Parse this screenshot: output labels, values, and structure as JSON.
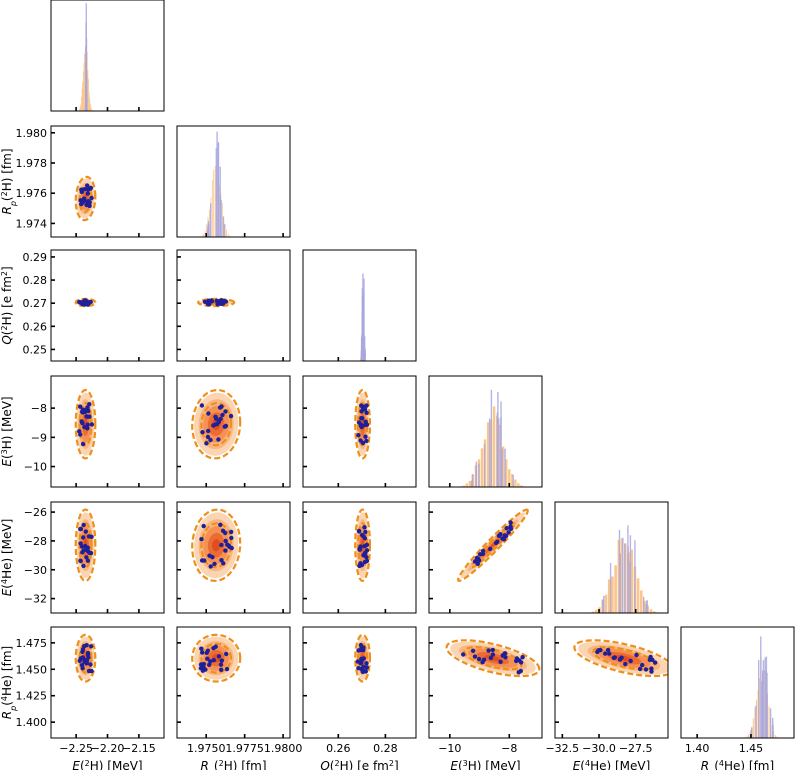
{
  "chart_data": {
    "type": "corner",
    "title": "",
    "parameters": [
      {
        "key": "E2H",
        "label": [
          "E(",
          "2",
          "H) [MeV]"
        ],
        "range": [
          -2.29,
          -2.11
        ],
        "ticks": [
          -2.25,
          -2.2,
          -2.15
        ],
        "tick_labels": [
          "−2.25",
          "−2.20",
          "−2.15"
        ],
        "center": -2.235
      },
      {
        "key": "Rp2H",
        "label": [
          "R",
          "p",
          "(",
          "2",
          "H) [fm]"
        ],
        "range": [
          1.9731,
          1.98045
        ],
        "ticks": [
          1.974,
          1.976,
          1.978,
          1.98
        ],
        "tick_labels": [
          "1.974",
          "1.976",
          "1.978",
          "1.980"
        ],
        "xticks": [
          1.975,
          1.9775,
          1.98
        ],
        "xtick_labels": [
          "1.9750",
          "1.9775",
          "1.9800"
        ],
        "center": 1.97565
      },
      {
        "key": "Q2H",
        "label": [
          "Q(",
          "2",
          "H) [e fm",
          "2",
          "]"
        ],
        "range": [
          0.245,
          0.293
        ],
        "ticks": [
          0.25,
          0.26,
          0.27,
          0.28,
          0.29
        ],
        "tick_labels": [
          "0.25",
          "0.26",
          "0.27",
          "0.28",
          "0.29"
        ],
        "xticks": [
          0.26,
          0.28
        ],
        "xtick_labels": [
          "0.26",
          "0.28"
        ],
        "center": 0.2703
      },
      {
        "key": "E3H",
        "label": [
          "E(",
          "3",
          "H) [MeV]"
        ],
        "range": [
          -10.7,
          -6.9
        ],
        "ticks": [
          -10,
          -9,
          -8
        ],
        "tick_labels": [
          "−10",
          "−9",
          "−8"
        ],
        "xticks": [
          -10,
          -8
        ],
        "xtick_labels": [
          "−10",
          "−8"
        ],
        "center": -8.55
      },
      {
        "key": "E4He",
        "label": [
          "E(",
          "4",
          "He) [MeV]"
        ],
        "range": [
          -33,
          -25.3
        ],
        "ticks": [
          -32,
          -30,
          -28,
          -26
        ],
        "tick_labels": [
          "−32",
          "−30",
          "−28",
          "−26"
        ],
        "xticks": [
          -32.5,
          -30.0,
          -27.5
        ],
        "xtick_labels": [
          "−32.5",
          "−30.0",
          "−27.5"
        ],
        "center": -28.3
      },
      {
        "key": "Rp4He",
        "label": [
          "R",
          "p",
          "(",
          "4",
          "He) [fm]"
        ],
        "range": [
          1.385,
          1.49
        ],
        "ticks": [
          1.4,
          1.425,
          1.45,
          1.475
        ],
        "tick_labels": [
          "1.400",
          "1.425",
          "1.450",
          "1.475"
        ],
        "xticks": [
          1.4,
          1.45
        ],
        "xtick_labels": [
          "1.40",
          "1.45"
        ],
        "center": 1.4605
      }
    ],
    "panels_2d": [
      {
        "x": "E2H",
        "y": "Rp2H",
        "sx": 0.006,
        "sy": 0.00055,
        "rho": 0.1
      },
      {
        "x": "E2H",
        "y": "Q2H",
        "sx": 0.006,
        "sy": 0.0006,
        "rho": 0.0
      },
      {
        "x": "E2H",
        "y": "E3H",
        "sx": 0.006,
        "sy": 0.45,
        "rho": 0.0
      },
      {
        "x": "E2H",
        "y": "E4He",
        "sx": 0.006,
        "sy": 0.95,
        "rho": 0.0
      },
      {
        "x": "E2H",
        "y": "Rp4He",
        "sx": 0.006,
        "sy": 0.0085,
        "rho": 0.0
      },
      {
        "x": "Rp2H",
        "y": "Q2H",
        "sx": 0.00045,
        "sy": 0.0006,
        "rho": 0.0
      },
      {
        "x": "Rp2H",
        "y": "E3H",
        "sx": 0.0006,
        "sy": 0.45,
        "rho": 0.05
      },
      {
        "x": "Rp2H",
        "y": "E4He",
        "sx": 0.0006,
        "sy": 0.95,
        "rho": 0.05
      },
      {
        "x": "Rp2H",
        "y": "Rp4He",
        "sx": 0.0006,
        "sy": 0.0085,
        "rho": 0.0
      },
      {
        "x": "Q2H",
        "y": "E3H",
        "sx": 0.0012,
        "sy": 0.45,
        "rho": 0.0
      },
      {
        "x": "Q2H",
        "y": "E4He",
        "sx": 0.0012,
        "sy": 0.95,
        "rho": 0.0
      },
      {
        "x": "Q2H",
        "y": "Rp4He",
        "sx": 0.0012,
        "sy": 0.0085,
        "rho": 0.0
      },
      {
        "x": "E3H",
        "y": "E4He",
        "sx": 0.45,
        "sy": 0.95,
        "rho": 0.97
      },
      {
        "x": "E3H",
        "y": "Rp4He",
        "sx": 0.6,
        "sy": 0.0065,
        "rho": -0.6
      },
      {
        "x": "E4He",
        "y": "Rp4He",
        "sx": 1.3,
        "sy": 0.0065,
        "rho": -0.6
      }
    ],
    "histograms_1d": [
      {
        "param": "E2H",
        "sd": 0.0035,
        "blue_sd": 0.0005
      },
      {
        "param": "Rp2H",
        "sd": 0.00032,
        "blue_sd": 0.00028
      },
      {
        "param": "Q2H",
        "sd": 0.0004,
        "blue_sd": 0.0004
      },
      {
        "param": "E3H",
        "sd": 0.35,
        "blue_sd": 0.35
      },
      {
        "param": "E4He",
        "sd": 0.75,
        "blue_sd": 0.75
      },
      {
        "param": "Rp4He",
        "sd": 0.005,
        "blue_sd": 0.005
      }
    ],
    "series": [
      {
        "name": "posterior density (orange)",
        "color": "#f39a3a"
      },
      {
        "name": "samples (blue)",
        "color": "#1f1f9a"
      }
    ],
    "contour_color": "#ee8f1a",
    "density_color": "#e0461a",
    "point_color": "#1f1f9a",
    "hist_orange": "#fcc58a",
    "hist_blue": "#a8a8e0"
  }
}
